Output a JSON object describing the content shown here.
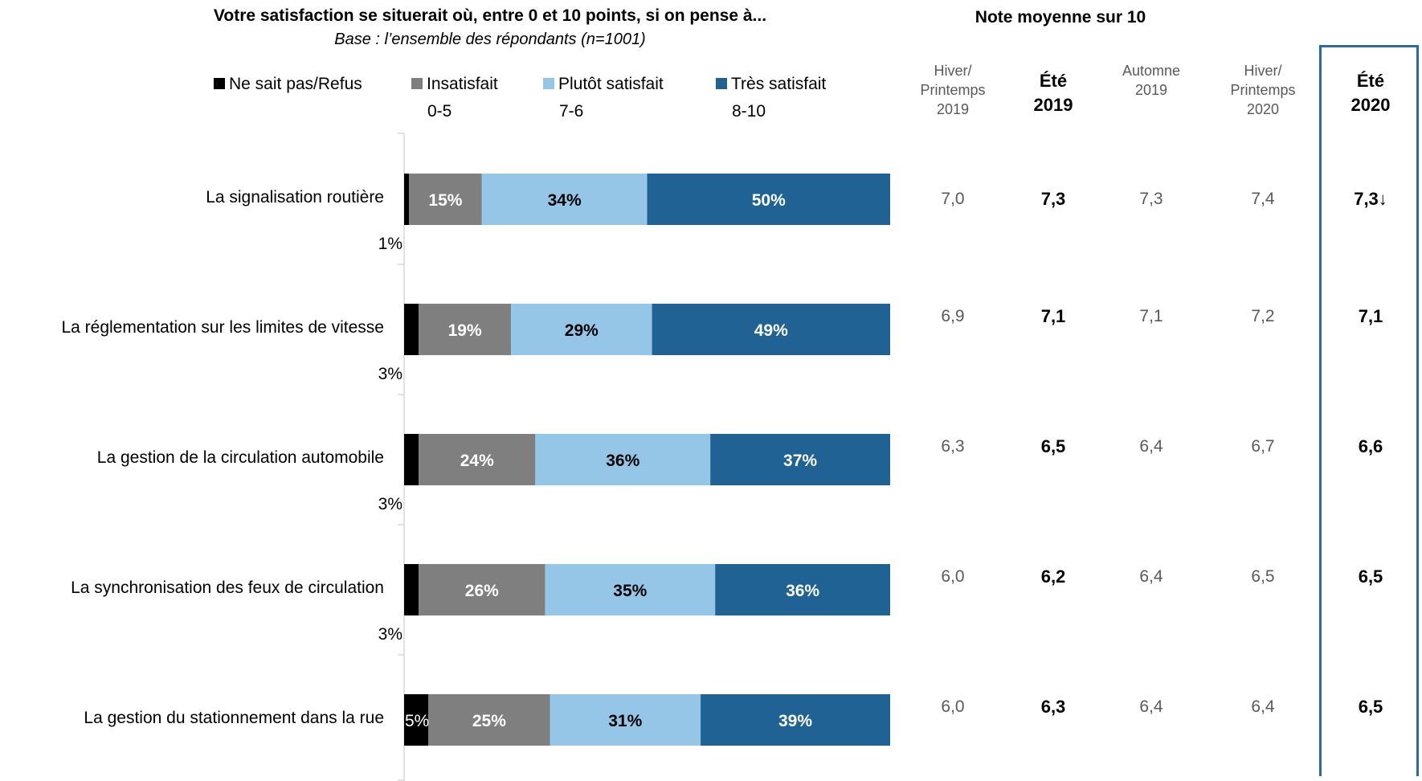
{
  "header": {
    "title": "Votre satisfaction se situerait où, entre 0 et 10 points, si on pense à...",
    "subtitle": "Base : l’ensemble des répondants (n=1001)",
    "avg_title": "Note moyenne sur 10"
  },
  "legend": [
    {
      "line1": "Ne sait pas/Refus",
      "line2": "",
      "color": "#000000"
    },
    {
      "line1": "Insatisfait",
      "line2": "0-5",
      "color": "#7f7f7f"
    },
    {
      "line1": "Plutôt satisfait",
      "line2": "7-6",
      "color": "#95c6e8"
    },
    {
      "line1": "Très satisfait",
      "line2": "8-10",
      "color": "#1f6293"
    }
  ],
  "columns": [
    {
      "lines": [
        "Hiver/",
        "Printemps",
        "2019"
      ],
      "bold": false
    },
    {
      "lines": [
        "Été",
        "2019"
      ],
      "bold": true
    },
    {
      "lines": [
        "Automne",
        "2019"
      ],
      "bold": false
    },
    {
      "lines": [
        "Hiver/",
        "Printemps",
        "2020"
      ],
      "bold": false
    },
    {
      "lines": [
        "Été",
        "2020"
      ],
      "bold": true
    }
  ],
  "rows": [
    {
      "label": "La signalisation routière",
      "scores": [
        "7,0",
        "7,3",
        "7,3",
        "7,4",
        "7,3↓"
      ]
    },
    {
      "label": "La réglementation sur les limites de vitesse",
      "scores": [
        "6,9",
        "7,1",
        "7,1",
        "7,2",
        "7,1"
      ]
    },
    {
      "label": "La gestion de la circulation automobile",
      "scores": [
        "6,3",
        "6,5",
        "6,4",
        "6,7",
        "6,6"
      ]
    },
    {
      "label": "La synchronisation des feux de circulation",
      "scores": [
        "6,0",
        "6,2",
        "6,4",
        "6,5",
        "6,5"
      ]
    },
    {
      "label": "La gestion du stationnement dans la rue",
      "scores": [
        "6,0",
        "6,3",
        "6,4",
        "6,4",
        "6,5"
      ]
    }
  ],
  "chart_data": {
    "type": "bar",
    "orientation": "horizontal",
    "stacked": true,
    "categories": [
      "La signalisation routière",
      "La réglementation sur les limites de vitesse",
      "La gestion de la circulation automobile",
      "La synchronisation des feux de circulation",
      "La gestion du stationnement dans la rue"
    ],
    "series": [
      {
        "name": "Ne sait pas/Refus",
        "color": "#000000",
        "values": [
          1,
          3,
          3,
          3,
          5
        ],
        "labels": [
          "1%",
          "3%",
          "3%",
          "3%",
          "5%"
        ]
      },
      {
        "name": "Insatisfait 0-5",
        "color": "#7f7f7f",
        "values": [
          15,
          19,
          24,
          26,
          25
        ],
        "labels": [
          "15%",
          "19%",
          "24%",
          "26%",
          "25%"
        ]
      },
      {
        "name": "Plutôt satisfait 7-6",
        "color": "#95c6e8",
        "values": [
          34,
          29,
          36,
          35,
          31
        ],
        "labels": [
          "34%",
          "29%",
          "36%",
          "35%",
          "31%"
        ]
      },
      {
        "name": "Très satisfait 8-10",
        "color": "#1f6293",
        "values": [
          50,
          49,
          37,
          36,
          39
        ],
        "labels": [
          "50%",
          "49%",
          "37%",
          "36%",
          "39%"
        ]
      }
    ],
    "xlim": [
      0,
      100
    ],
    "legend_position": "top"
  }
}
